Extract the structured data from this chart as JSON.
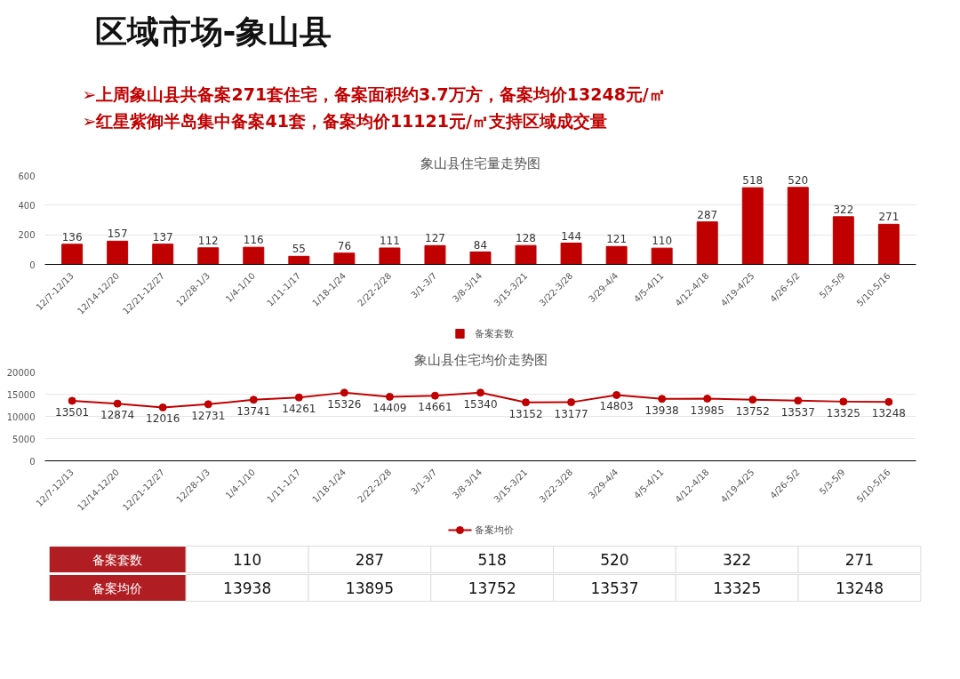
{
  "chart_data": [
    {
      "type": "other",
      "title": "区域市场-象山县",
      "annotations": [
        "➢上周象山县共备案271套住宅，备案面积约3.7万方，备案均价13248元/㎡",
        "➢红星紫御半岛集中备案41套，备案均价11121元/㎡支持区域成交量"
      ]
    },
    {
      "type": "bar",
      "title": "象山县住宅量走势图",
      "categories": [
        "12/7-12/13",
        "12/14-12/20",
        "12/21-12/27",
        "12/28-1/3",
        "1/4-1/10",
        "1/11-1/17",
        "1/18-1/24",
        "2/22-2/28",
        "3/1-3/7",
        "3/8-3/14",
        "3/15-3/21",
        "3/22-3/28",
        "3/29-4/4",
        "4/5-4/11",
        "4/12-4/18",
        "4/19-4/25",
        "4/26-5/2",
        "5/3-5/9",
        "5/10-5/16"
      ],
      "series": [
        {
          "name": "备案套数",
          "color": "#c00000",
          "values": [
            136,
            157,
            137,
            112,
            116,
            55,
            76,
            111,
            127,
            84,
            128,
            144,
            121,
            110,
            287,
            518,
            520,
            322,
            271
          ]
        }
      ],
      "ylim": [
        0,
        600
      ],
      "yticks": [
        0,
        200,
        400,
        600
      ],
      "grid": "y",
      "legend": "bottom",
      "data_labels": true
    },
    {
      "type": "line",
      "title": "象山县住宅均价走势图",
      "categories": [
        "12/7-12/13",
        "12/14-12/20",
        "12/21-12/27",
        "12/28-1/3",
        "1/4-1/10",
        "1/11-1/17",
        "1/18-1/24",
        "2/22-2/28",
        "3/1-3/7",
        "3/8-3/14",
        "3/15-3/21",
        "3/22-3/28",
        "3/29-4/4",
        "4/5-4/11",
        "4/12-4/18",
        "4/19-4/25",
        "4/26-5/2",
        "5/3-5/9",
        "5/10-5/16"
      ],
      "series": [
        {
          "name": "备案均价",
          "color": "#c00000",
          "values": [
            13501,
            12874,
            12016,
            12731,
            13741,
            14261,
            15326,
            14409,
            14661,
            15340,
            13152,
            13177,
            14803,
            13938,
            13985,
            13752,
            13537,
            13325,
            13248
          ]
        }
      ],
      "ylim": [
        0,
        20000
      ],
      "yticks": [
        0,
        5000,
        10000,
        15000,
        20000
      ],
      "grid": "y",
      "legend": "bottom",
      "marker": "circle",
      "line_style": "solid",
      "data_labels": true
    },
    {
      "type": "other",
      "y_categories": [
        "备案套数",
        "备案均价"
      ],
      "annotations": [
        "110",
        "287",
        "518",
        "520",
        "322",
        "271",
        "13938",
        "13895",
        "13752",
        "13537",
        "13325",
        "13248"
      ],
      "color": "#b01e23"
    }
  ]
}
